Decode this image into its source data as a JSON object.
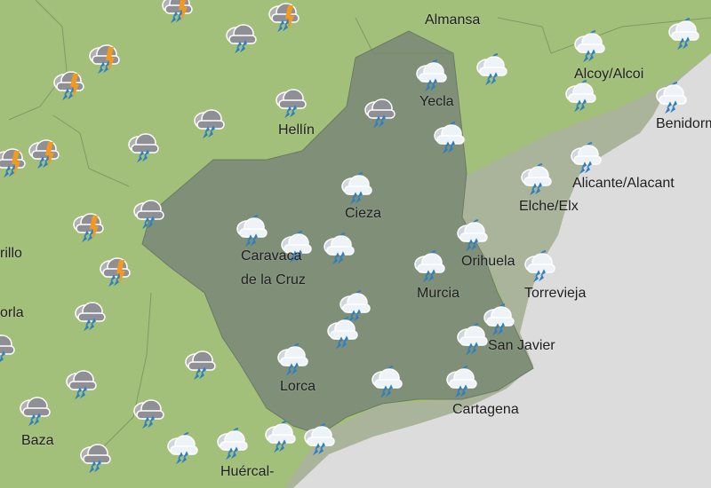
{
  "map": {
    "colors": {
      "land": "#a3c07a",
      "region_murcia": "#7f8f78",
      "coastal_plain": "#a9b49b",
      "sea": "#dcdcdc",
      "bolt": "#f39a1e",
      "drop": "#2f7fc1",
      "cloud_dark": "#8f8f96",
      "cloud_light": "#eef3f8"
    },
    "cities": [
      {
        "name": "Almansa"
      },
      {
        "name": "Yecla"
      },
      {
        "name": "Hellín"
      },
      {
        "name": "Alcoy/Alcoi"
      },
      {
        "name": "Benidorm"
      },
      {
        "name": "Cieza"
      },
      {
        "name": "Alicante/Alacant"
      },
      {
        "name": "Elche/Elx"
      },
      {
        "name": "Caravaca"
      },
      {
        "name": "de la Cruz"
      },
      {
        "name": "Orihuela"
      },
      {
        "name": "Torrevieja"
      },
      {
        "name": "Murcia"
      },
      {
        "name": "San Javier"
      },
      {
        "name": "Lorca"
      },
      {
        "name": "Cartagena"
      },
      {
        "name": "Baza"
      },
      {
        "name": "Huércal-"
      },
      {
        "name": "rillo"
      },
      {
        "name": "orla"
      }
    ],
    "icon_types": {
      "thunderstorm": "thunderstorm-icon",
      "rain": "rain-icon",
      "showers": "showers-icon"
    }
  }
}
